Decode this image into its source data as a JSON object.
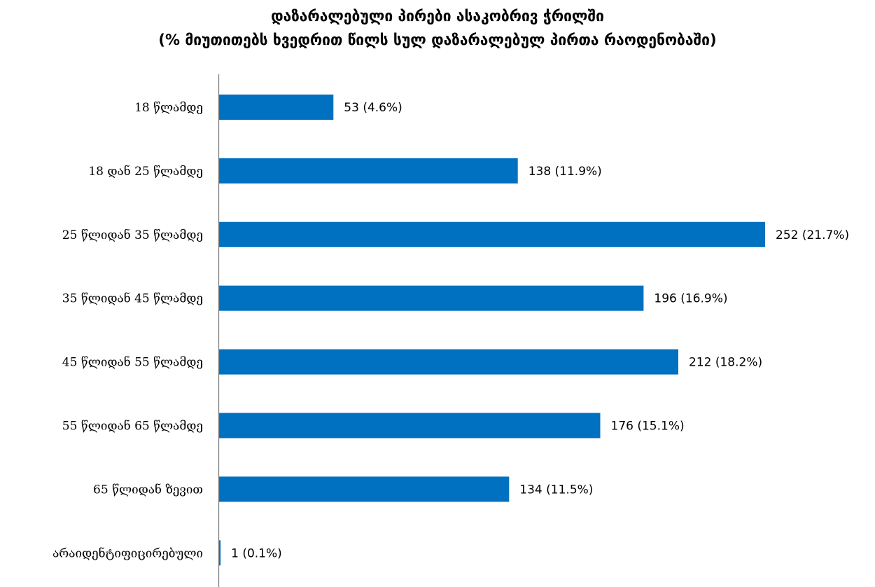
{
  "chart_data": {
    "type": "bar",
    "orientation": "horizontal",
    "title_line1": "დაზარალებული პირები ასაკობრივ ჭრილში",
    "title_line2": "(% მიუთითებს ხვედრით წილს სულ დაზარალებულ პირთა რაოდენობაში)",
    "categories": [
      "18 წლამდე",
      "18 დან 25 წლამდე",
      "25 წლიდან 35 წლამდე",
      "35 წლიდან 45 წლამდე",
      "45 წლიდან 55 წლამდე",
      "55 წლიდან  65 წლამდე",
      "65 წლიდან ზევით",
      "არაიდენტიფიცირებული"
    ],
    "values": [
      53,
      138,
      252,
      196,
      212,
      176,
      134,
      1
    ],
    "data_labels": [
      "53 (4.6%)",
      "138 (11.9%)",
      "252 (21.7%)",
      "196 (16.9%)",
      "212 (18.2%)",
      "176 (15.1%)",
      "134 (11.5%)",
      "1 (0.1%)"
    ],
    "xlim": [
      0,
      252
    ],
    "grid": false,
    "legend": "none",
    "bar_color": "#0070C0",
    "axis_color": "#808080"
  }
}
